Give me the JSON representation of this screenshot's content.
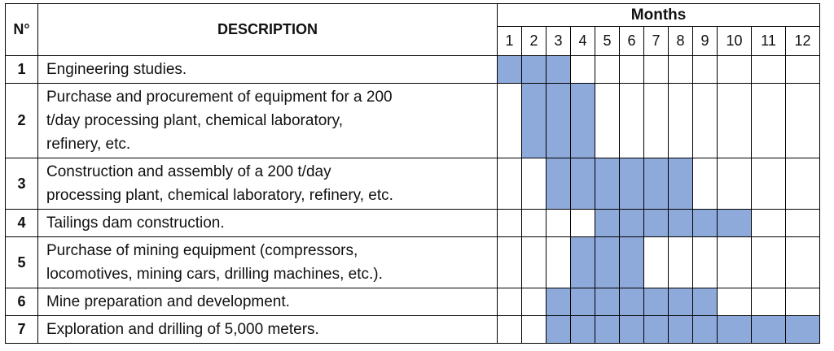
{
  "headers": {
    "number": "N°",
    "description": "DESCRIPTION",
    "months": "Months"
  },
  "months": [
    "1",
    "2",
    "3",
    "4",
    "5",
    "6",
    "7",
    "8",
    "9",
    "10",
    "11",
    "12"
  ],
  "colors": {
    "bar_fill": "#8eaadb",
    "border": "#000000"
  },
  "rows": [
    {
      "no": "1",
      "description": "Engineering studies.",
      "active_months": [
        1,
        2,
        3
      ]
    },
    {
      "no": "2",
      "description": "Purchase and procurement of equipment for a 200\nt/day processing plant, chemical laboratory,\nrefinery, etc.",
      "active_months": [
        2,
        3,
        4
      ]
    },
    {
      "no": "3",
      "description": "Construction and assembly of a 200 t/day\nprocessing plant, chemical laboratory, refinery, etc.",
      "active_months": [
        3,
        4,
        5,
        6,
        7,
        8
      ]
    },
    {
      "no": "4",
      "description": "Tailings dam construction.",
      "active_months": [
        5,
        6,
        7,
        8,
        9,
        10
      ]
    },
    {
      "no": "5",
      "description": "Purchase of mining equipment (compressors,\nlocomotives, mining cars, drilling machines, etc.).",
      "active_months": [
        4,
        5,
        6
      ]
    },
    {
      "no": "6",
      "description": "Mine preparation and development.",
      "active_months": [
        3,
        4,
        5,
        6,
        7,
        8,
        9
      ]
    },
    {
      "no": "7",
      "description": "Exploration and drilling of 5,000 meters.",
      "active_months": [
        3,
        4,
        5,
        6,
        7,
        8,
        9,
        10,
        11,
        12
      ]
    }
  ]
}
